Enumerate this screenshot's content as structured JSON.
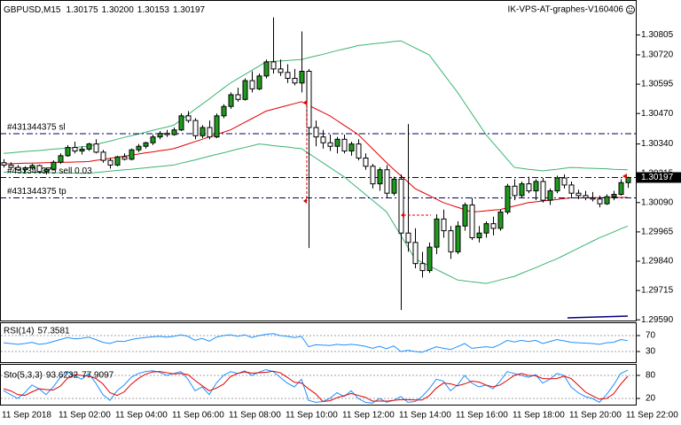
{
  "chart_data": [
    {
      "type": "candlestick",
      "header": {
        "symbol": "GBPUSD,M15",
        "ohlc": [
          "1.30175",
          "1.30200",
          "1.30153",
          "1.30197"
        ]
      },
      "watermark": "IK-VPS-AT-graphes-V160406",
      "categories": [
        "11 Sep 2018",
        null,
        null,
        null,
        null,
        null,
        null,
        null,
        "11 Sep 02:00",
        null,
        null,
        null,
        null,
        null,
        null,
        null,
        "11 Sep 04:00",
        null,
        null,
        null,
        null,
        null,
        null,
        null,
        "11 Sep 06:00",
        null,
        null,
        null,
        null,
        null,
        null,
        null,
        "11 Sep 08:00",
        null,
        null,
        null,
        null,
        null,
        null,
        null,
        "11 Sep 10:00",
        null,
        null,
        null,
        null,
        null,
        null,
        null,
        "11 Sep 12:00",
        null,
        null,
        null,
        null,
        null,
        null,
        null,
        "11 Sep 14:00",
        null,
        null,
        null,
        null,
        null,
        null,
        null,
        "11 Sep 16:00",
        null,
        null,
        null,
        null,
        null,
        null,
        null,
        "11 Sep 18:00",
        null,
        null,
        null,
        null,
        null,
        null,
        null,
        "11 Sep 20:00",
        null,
        null,
        null,
        null,
        null,
        null,
        null,
        "11 Sep 22:00"
      ],
      "open": [
        1.3026,
        1.3025,
        1.3024,
        1.3023,
        1.30238,
        1.30248,
        1.30222,
        1.30232,
        1.30262,
        1.3029,
        1.30325,
        1.3031,
        1.30318,
        1.3034,
        1.30305,
        1.3027,
        1.3025,
        1.30285,
        1.30275,
        1.30315,
        1.3033,
        1.30345,
        1.3037,
        1.30385,
        1.3038,
        1.304,
        1.3046,
        1.3044,
        1.30375,
        1.3041,
        1.3037,
        1.3046,
        1.305,
        1.3055,
        1.3053,
        1.3061,
        1.30575,
        1.3063,
        1.3069,
        1.3066,
        1.30645,
        1.3062,
        1.306,
        1.3065,
        1.3041,
        1.3037,
        1.30345,
        1.3033,
        1.3036,
        1.3031,
        1.3034,
        1.3028,
        1.30245,
        1.3017,
        1.3023,
        1.3013,
        1.3019,
        1.2996,
        1.2992,
        1.2983,
        1.298,
        1.299,
        1.3002,
        1.2997,
        1.2988,
        1.2999,
        1.3008,
        1.2994,
        1.2996,
        1.3,
        1.2998,
        1.3005,
        1.3016,
        1.3012,
        1.3017,
        1.3014,
        1.3018,
        1.301,
        1.3014,
        1.30195,
        1.30165,
        1.3013,
        1.3012,
        1.3011,
        1.30105,
        1.30085,
        1.30115,
        1.30125,
        1.30175
      ],
      "high": [
        1.30275,
        1.30262,
        1.3025,
        1.30245,
        1.30255,
        1.30252,
        1.3024,
        1.3027,
        1.303,
        1.30335,
        1.3035,
        1.3033,
        1.30345,
        1.3036,
        1.30315,
        1.3028,
        1.3029,
        1.303,
        1.3032,
        1.3034,
        1.3035,
        1.3038,
        1.30395,
        1.304,
        1.3041,
        1.3047,
        1.3048,
        1.3045,
        1.3042,
        1.3044,
        1.3047,
        1.3051,
        1.3056,
        1.3058,
        1.3062,
        1.3065,
        1.3064,
        1.307,
        1.3088,
        1.307,
        1.3068,
        1.3066,
        1.3082,
        1.3066,
        1.3044,
        1.304,
        1.3038,
        1.3037,
        1.3038,
        1.3035,
        1.3036,
        1.303,
        1.30255,
        1.3024,
        1.3025,
        1.302,
        1.3021,
        1.30425,
        1.2998,
        1.2988,
        1.2992,
        1.3004,
        1.3006,
        1.2999,
        1.3001,
        1.3009,
        1.3011,
        1.2999,
        1.3001,
        1.3003,
        1.3006,
        1.3017,
        1.3019,
        1.3018,
        1.302,
        1.3019,
        1.30195,
        1.3015,
        1.30205,
        1.3021,
        1.3018,
        1.30145,
        1.3014,
        1.30135,
        1.3012,
        1.30125,
        1.3014,
        1.3019,
        1.302
      ],
      "low": [
        1.3024,
        1.3023,
        1.30225,
        1.3022,
        1.3023,
        1.30215,
        1.3021,
        1.30228,
        1.30255,
        1.30285,
        1.303,
        1.30295,
        1.3031,
        1.303,
        1.3026,
        1.30235,
        1.30245,
        1.3027,
        1.3027,
        1.30305,
        1.3032,
        1.30335,
        1.3036,
        1.3037,
        1.30375,
        1.30395,
        1.3043,
        1.3036,
        1.30365,
        1.3036,
        1.30365,
        1.3045,
        1.3049,
        1.3052,
        1.30525,
        1.3056,
        1.3057,
        1.3062,
        1.3064,
        1.3063,
        1.306,
        1.3059,
        1.3056,
        1.29896,
        1.3033,
        1.3032,
        1.3031,
        1.303,
        1.303,
        1.3029,
        1.3027,
        1.3023,
        1.3015,
        1.3014,
        1.3011,
        1.3012,
        1.29632,
        1.2988,
        1.2981,
        1.2977,
        1.2979,
        1.2987,
        1.2994,
        1.2985,
        1.2987,
        1.2997,
        1.2993,
        1.2992,
        1.2994,
        1.2995,
        1.2997,
        1.3004,
        1.301,
        1.3011,
        1.3013,
        1.301,
        1.3009,
        1.3008,
        1.3013,
        1.3015,
        1.3011,
        1.30105,
        1.301,
        1.30095,
        1.3007,
        1.3008,
        1.301,
        1.3012,
        1.30153
      ],
      "close": [
        1.3025,
        1.3024,
        1.3023,
        1.30238,
        1.30248,
        1.30222,
        1.30232,
        1.30262,
        1.3029,
        1.30325,
        1.3031,
        1.30318,
        1.3034,
        1.30305,
        1.3027,
        1.3025,
        1.30285,
        1.30275,
        1.30315,
        1.3033,
        1.30345,
        1.3037,
        1.30385,
        1.3038,
        1.304,
        1.3046,
        1.3044,
        1.30375,
        1.3041,
        1.3037,
        1.3046,
        1.305,
        1.3055,
        1.3053,
        1.3061,
        1.30575,
        1.3063,
        1.3069,
        1.3066,
        1.30645,
        1.3062,
        1.306,
        1.3065,
        1.3041,
        1.3037,
        1.30345,
        1.3033,
        1.3036,
        1.3031,
        1.3034,
        1.3028,
        1.30245,
        1.3017,
        1.3023,
        1.3013,
        1.3019,
        1.2996,
        1.2992,
        1.2983,
        1.298,
        1.299,
        1.3002,
        1.2997,
        1.2988,
        1.2999,
        1.3008,
        1.2994,
        1.2996,
        1.3,
        1.2998,
        1.3005,
        1.3016,
        1.3012,
        1.3017,
        1.3014,
        1.3018,
        1.301,
        1.3014,
        1.30195,
        1.30165,
        1.3013,
        1.3012,
        1.3011,
        1.30105,
        1.30085,
        1.30115,
        1.30125,
        1.30175,
        1.30197
      ],
      "up_color": "#1f9a1f",
      "down_color": "#ffffff",
      "outline_color": "#000000",
      "series": [
        {
          "color": "#3cb371",
          "values": [
            1.303,
            1.30302,
            1.30305,
            1.30308,
            1.3031,
            1.30312,
            1.30315,
            1.30318,
            1.3032,
            1.30322,
            1.30325,
            1.30328,
            1.3033,
            1.30338,
            1.30345,
            1.30352,
            1.3036,
            1.30368,
            1.30375,
            1.30382,
            1.3039,
            1.30398,
            1.30405,
            1.30412,
            1.3042,
            1.30442,
            1.30465,
            1.30488,
            1.3051,
            1.30532,
            1.30555,
            1.30578,
            1.306,
            1.30618,
            1.30636,
            1.30654,
            1.30672,
            1.3069,
            1.30692,
            1.30694,
            1.30696,
            1.30698,
            1.307,
            1.30708,
            1.30715,
            1.30722,
            1.3073,
            1.30738,
            1.30745,
            1.30752,
            1.3076,
            1.30763,
            1.30767,
            1.3077,
            1.30773,
            1.30777,
            1.3078,
            1.30765,
            1.3075,
            1.30735,
            1.3072,
            1.3068,
            1.3064,
            1.306,
            1.3056,
            1.30515,
            1.3047,
            1.30425,
            1.3038,
            1.30345,
            1.3031,
            1.30275,
            1.3024,
            1.30236,
            1.30232,
            1.30229,
            1.30225,
            1.30229,
            1.30232,
            1.30236,
            1.3024,
            1.30239,
            1.30237,
            1.30236,
            1.30235,
            1.30234,
            1.30232,
            1.30231,
            1.3023
          ]
        },
        {
          "color": "#3cb371",
          "values": [
            1.3022,
            1.3022,
            1.30219,
            1.30219,
            1.30218,
            1.30218,
            1.30218,
            1.30217,
            1.30217,
            1.30216,
            1.30216,
            1.30215,
            1.30215,
            1.30218,
            1.30221,
            1.30224,
            1.30227,
            1.3023,
            1.30232,
            1.30235,
            1.30238,
            1.30241,
            1.30244,
            1.30247,
            1.3025,
            1.30258,
            1.30265,
            1.30272,
            1.3028,
            1.30288,
            1.30295,
            1.30302,
            1.3031,
            1.30318,
            1.30325,
            1.30332,
            1.3034,
            1.30337,
            1.30333,
            1.3033,
            1.30327,
            1.30323,
            1.3032,
            1.303,
            1.3028,
            1.3026,
            1.3024,
            1.3022,
            1.302,
            1.30175,
            1.3015,
            1.30125,
            1.301,
            1.30075,
            1.3005,
            1.3,
            1.2995,
            1.299,
            1.2985,
            1.29835,
            1.2982,
            1.29805,
            1.2979,
            1.29775,
            1.2976,
            1.29756,
            1.29752,
            1.29749,
            1.29745,
            1.29752,
            1.2976,
            1.29768,
            1.29775,
            1.29788,
            1.298,
            1.29812,
            1.29825,
            1.29838,
            1.2985,
            1.29865,
            1.2988,
            1.29895,
            1.2991,
            1.29925,
            1.2994,
            1.29952,
            1.29965,
            1.29978,
            1.2999
          ]
        },
        {
          "color": "#e00000",
          "values": [
            1.30255,
            1.30256,
            1.30257,
            1.30258,
            1.30258,
            1.30259,
            1.3026,
            1.30261,
            1.30262,
            1.30262,
            1.30263,
            1.30264,
            1.30265,
            1.3027,
            1.30274,
            1.30279,
            1.30283,
            1.30288,
            1.30292,
            1.30297,
            1.30302,
            1.30306,
            1.30311,
            1.30315,
            1.3032,
            1.3033,
            1.3034,
            1.3035,
            1.3036,
            1.3037,
            1.3038,
            1.3039,
            1.304,
            1.30416,
            1.30432,
            1.30448,
            1.30464,
            1.3048,
            1.30488,
            1.30496,
            1.30504,
            1.30512,
            1.3052,
            1.30505,
            1.3049,
            1.30475,
            1.3046,
            1.3044,
            1.3042,
            1.304,
            1.3038,
            1.3035,
            1.3032,
            1.3029,
            1.3026,
            1.30232,
            1.30205,
            1.30178,
            1.3015,
            1.30135,
            1.3012,
            1.30105,
            1.3009,
            1.3008,
            1.3007,
            1.3006,
            1.3005,
            1.30052,
            1.30055,
            1.30058,
            1.3006,
            1.30068,
            1.30075,
            1.30082,
            1.3009,
            1.30093,
            1.30097,
            1.301,
            1.30103,
            1.30107,
            1.3011,
            1.3011,
            1.3011,
            1.30111,
            1.30111,
            1.30111,
            1.30112,
            1.30112,
            1.30112
          ]
        }
      ],
      "levels": [
        {
          "label": "#431344375 sl",
          "value": 1.30384
        },
        {
          "label": "#431344375 sell 0.03",
          "value": 1.30197
        },
        {
          "label": "#431344375 tp",
          "value": 1.3011
        }
      ],
      "level_color": "#000060",
      "ylim": [
        1.29587,
        1.30954
      ],
      "yticks": [
        {
          "value": 1.30805,
          "label": "1.30805"
        },
        {
          "value": 1.3072,
          "label": "1.30720"
        },
        {
          "value": 1.30595,
          "label": "1.30595"
        },
        {
          "value": 1.3047,
          "label": "1.30470"
        },
        {
          "value": 1.3034,
          "label": "1.30340"
        },
        {
          "value": 1.30215,
          "label": "1.30215"
        },
        {
          "value": 1.3009,
          "label": "1.30090"
        },
        {
          "value": 1.29965,
          "label": "1.29965"
        },
        {
          "value": 1.2984,
          "label": "1.29840"
        },
        {
          "value": 1.29715,
          "label": "1.29715"
        },
        {
          "value": 1.2959,
          "label": "1.29590"
        }
      ]
    },
    {
      "type": "line",
      "title": "RSI(14)",
      "series": [
        {
          "color": "#1e90ff",
          "values": [
            52,
            50,
            48,
            50,
            53,
            48,
            50,
            55,
            60,
            65,
            62,
            63,
            66,
            60,
            53,
            50,
            56,
            55,
            60,
            63,
            65,
            67,
            68,
            66,
            68,
            72,
            68,
            58,
            63,
            56,
            66,
            70,
            72,
            68,
            72,
            65,
            70,
            73,
            75,
            70,
            68,
            65,
            68,
            42,
            47,
            46,
            45,
            48,
            46,
            48,
            46,
            43,
            38,
            43,
            37,
            44,
            30,
            33,
            30,
            28,
            35,
            42,
            38,
            35,
            42,
            50,
            38,
            40,
            42,
            40,
            48,
            58,
            54,
            58,
            55,
            58,
            50,
            55,
            60,
            57,
            53,
            52,
            51,
            50,
            48,
            52,
            53,
            60,
            57.3581
          ]
        }
      ],
      "ylim": [
        0,
        100
      ],
      "yticks": [
        70,
        30
      ],
      "level_color": "#a0a0a0"
    },
    {
      "type": "line",
      "title": "Sto(5,3,3)",
      "series": [
        {
          "color": "#1e90ff",
          "values": [
            40,
            30,
            20,
            35,
            55,
            45,
            30,
            50,
            75,
            90,
            80,
            70,
            85,
            60,
            30,
            15,
            40,
            55,
            75,
            85,
            90,
            92,
            88,
            80,
            85,
            90,
            70,
            40,
            50,
            30,
            60,
            80,
            90,
            85,
            92,
            80,
            88,
            95,
            90,
            75,
            60,
            50,
            70,
            15,
            10,
            12,
            20,
            35,
            25,
            40,
            20,
            10,
            8,
            20,
            10,
            15,
            25,
            10,
            12,
            25,
            45,
            70,
            65,
            40,
            55,
            80,
            60,
            50,
            55,
            45,
            65,
            90,
            85,
            80,
            75,
            82,
            60,
            70,
            85,
            80,
            50,
            35,
            25,
            20,
            10,
            30,
            55,
            85,
            93.6232
          ]
        },
        {
          "color": "#e00000",
          "values": [
            45,
            40,
            30,
            28,
            37,
            45,
            43,
            42,
            52,
            72,
            82,
            80,
            78,
            72,
            58,
            35,
            28,
            37,
            57,
            72,
            83,
            89,
            90,
            87,
            84,
            85,
            82,
            67,
            53,
            40,
            47,
            57,
            77,
            85,
            89,
            86,
            87,
            88,
            91,
            87,
            75,
            62,
            60,
            45,
            32,
            12,
            14,
            22,
            27,
            33,
            28,
            23,
            13,
            13,
            13,
            15,
            17,
            17,
            16,
            16,
            27,
            47,
            60,
            58,
            53,
            58,
            65,
            63,
            55,
            50,
            55,
            67,
            80,
            85,
            80,
            79,
            72,
            71,
            72,
            78,
            72,
            55,
            37,
            27,
            18,
            20,
            32,
            57,
            77.9097
          ]
        }
      ],
      "ylim": [
        0,
        100
      ],
      "yticks": [
        80,
        20
      ],
      "level_color": "#a0a0a0"
    }
  ]
}
